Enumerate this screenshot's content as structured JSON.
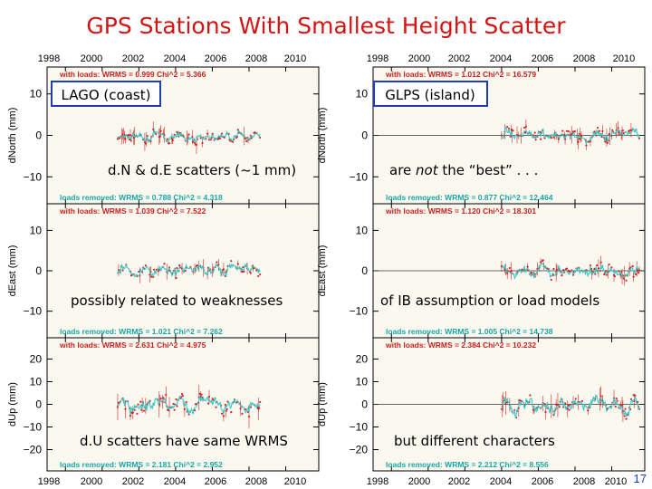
{
  "title": "GPS Stations With Smallest Height Scatter",
  "slide_number": "17",
  "colors": {
    "title": "#d21414",
    "with_loads_text": "#c81e1e",
    "loads_removed_text": "#18a6a6",
    "series_with_loads": "#d62020",
    "series_loads_removed": "#3cc8c8",
    "annotation_box": "#1f3fb0",
    "panel_bg": "#fbf9ef"
  },
  "top_year_labels": [
    "1998",
    "2000",
    "2002",
    "2004",
    "2006",
    "2008",
    "2010"
  ],
  "bottom_year_labels": [
    "1998",
    "2000",
    "2002",
    "2004",
    "2006",
    "2008",
    "2010"
  ],
  "annotations": {
    "left_station": "LAGO (coast)",
    "right_station": "GLPS (island)",
    "north_left": "d.N & d.E scatters (~1 mm)",
    "north_right_pre": "are ",
    "north_right_em": "not",
    "north_right_post": " the “best” . . .",
    "east_left": "possibly related to weaknesses",
    "east_right": "of IB assumption or load models",
    "up_left": "d.U scatters have same WRMS",
    "up_right": "but different characters"
  },
  "chart_data": [
    {
      "type": "scatter",
      "station": "LAGO",
      "component": "north",
      "ylabel": "dNorth (mm)",
      "ylim": [
        -13,
        13
      ],
      "yticks": [
        10,
        0,
        -10
      ],
      "x_start": 2000.8,
      "x_end": 2008.6,
      "stats_with_loads": "with loads:    WRMS = 0.999  Chi^2 = 5.366",
      "stats_loads_removed": "loads removed: WRMS = 0.788  Chi^2 = 4.318",
      "series": [
        {
          "name": "with loads",
          "amplitude": 1.0
        },
        {
          "name": "loads removed",
          "amplitude": 0.8
        }
      ]
    },
    {
      "type": "scatter",
      "station": "LAGO",
      "component": "east",
      "ylabel": "dEast (mm)",
      "ylim": [
        -13,
        13
      ],
      "yticks": [
        10,
        0,
        -10
      ],
      "x_start": 2000.8,
      "x_end": 2008.6,
      "stats_with_loads": "with loads:    WRMS = 1.039  Chi^2 = 7.522",
      "stats_loads_removed": "loads removed: WRMS = 1.021  Chi^2 = 7.262",
      "series": [
        {
          "name": "with loads",
          "amplitude": 1.04
        },
        {
          "name": "loads removed",
          "amplitude": 1.02
        }
      ]
    },
    {
      "type": "scatter",
      "station": "LAGO",
      "component": "up",
      "ylabel": "dUp (mm)",
      "ylim": [
        -23,
        23
      ],
      "yticks": [
        20,
        10,
        0,
        -10,
        -20
      ],
      "x_start": 2000.8,
      "x_end": 2008.6,
      "stats_with_loads": "with loads:    WRMS = 2.631  Chi^2 = 4.975",
      "stats_loads_removed": "loads removed: WRMS = 2.181  Chi^2 = 2.952",
      "series": [
        {
          "name": "with loads",
          "amplitude": 2.63
        },
        {
          "name": "loads removed",
          "amplitude": 2.18
        }
      ]
    },
    {
      "type": "scatter",
      "station": "GLPS",
      "component": "north",
      "ylabel": "dNorth (mm)",
      "ylim": [
        -13,
        13
      ],
      "yticks": [
        10,
        0,
        -10
      ],
      "x_start": 2004.0,
      "x_end": 2011.5,
      "stats_with_loads": "with loads:    WRMS = 1.012  Chi^2 = 16.579",
      "stats_loads_removed": "loads removed: WRMS = 0.877  Chi^2 = 12.464",
      "series": [
        {
          "name": "with loads",
          "amplitude": 1.01
        },
        {
          "name": "loads removed",
          "amplitude": 0.88
        }
      ]
    },
    {
      "type": "scatter",
      "station": "GLPS",
      "component": "east",
      "ylabel": "dEast (mm)",
      "ylim": [
        -13,
        13
      ],
      "yticks": [
        10,
        0,
        -10
      ],
      "x_start": 2004.0,
      "x_end": 2011.5,
      "stats_with_loads": "with loads:    WRMS = 1.120  Chi^2 = 18.301",
      "stats_loads_removed": "loads removed: WRMS = 1.005  Chi^2 = 14.738",
      "series": [
        {
          "name": "with loads",
          "amplitude": 1.12
        },
        {
          "name": "loads removed",
          "amplitude": 1.0
        }
      ]
    },
    {
      "type": "scatter",
      "station": "GLPS",
      "component": "up",
      "ylabel": "dUp (mm)",
      "ylim": [
        -23,
        23
      ],
      "yticks": [
        20,
        10,
        0,
        -10,
        -20
      ],
      "x_start": 2004.0,
      "x_end": 2011.5,
      "stats_with_loads": "with loads:    WRMS = 2.384  Chi^2 = 10.232",
      "stats_loads_removed": "loads removed: WRMS = 2.212  Chi^2 = 8.556",
      "series": [
        {
          "name": "with loads",
          "amplitude": 2.38
        },
        {
          "name": "loads removed",
          "amplitude": 2.21
        }
      ]
    }
  ],
  "xaxis": {
    "min": 1997.0,
    "max": 2011.8,
    "ticks": [
      1998,
      2000,
      2002,
      2004,
      2006,
      2008,
      2010
    ]
  }
}
